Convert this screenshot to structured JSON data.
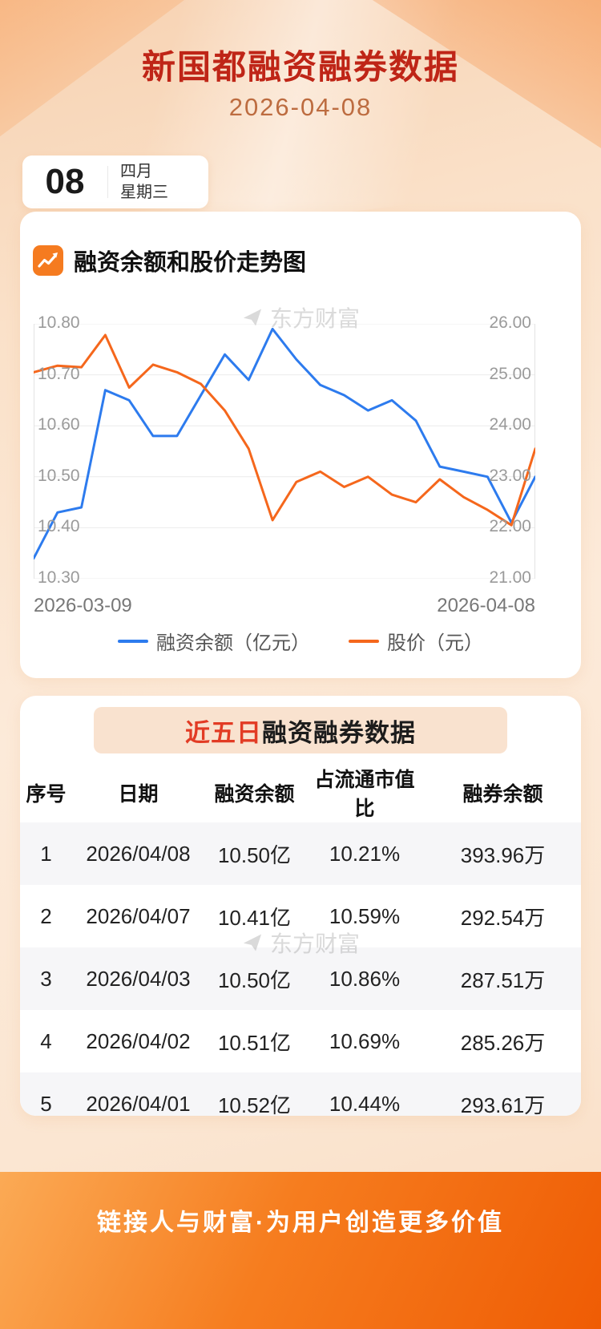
{
  "header": {
    "title": "新国都融资融券数据",
    "subtitle": "2026-04-08",
    "badge": {
      "day": "08",
      "month": "四月",
      "weekday": "星期三"
    }
  },
  "chart_section": {
    "title": "融资余额和股价走势图",
    "watermark": "东方财富"
  },
  "chart_data": {
    "type": "line",
    "x": [
      "2026-03-09",
      "2026-03-10",
      "2026-03-11",
      "2026-03-12",
      "2026-03-13",
      "2026-03-16",
      "2026-03-17",
      "2026-03-18",
      "2026-03-19",
      "2026-03-20",
      "2026-03-23",
      "2026-03-24",
      "2026-03-25",
      "2026-03-26",
      "2026-03-27",
      "2026-03-30",
      "2026-03-31",
      "2026-04-01",
      "2026-04-02",
      "2026-04-03",
      "2026-04-07",
      "2026-04-08"
    ],
    "series": [
      {
        "name": "融资余额（亿元）",
        "axis": "left",
        "color": "#2d7bee",
        "values": [
          10.34,
          10.43,
          10.44,
          10.67,
          10.65,
          10.58,
          10.58,
          10.66,
          10.74,
          10.69,
          10.79,
          10.73,
          10.68,
          10.66,
          10.63,
          10.65,
          10.61,
          10.52,
          10.51,
          10.5,
          10.41,
          10.5
        ]
      },
      {
        "name": "股价（元）",
        "axis": "right",
        "color": "#f5671c",
        "values": [
          25.05,
          25.18,
          25.15,
          25.78,
          24.75,
          25.2,
          25.05,
          24.82,
          24.3,
          23.55,
          22.15,
          22.9,
          23.1,
          22.8,
          23.0,
          22.65,
          22.5,
          22.95,
          22.6,
          22.35,
          22.05,
          23.55
        ]
      }
    ],
    "left_axis": {
      "range": [
        10.3,
        10.8
      ],
      "ticks": [
        "10.80",
        "10.70",
        "10.60",
        "10.50",
        "10.40",
        "10.30"
      ]
    },
    "right_axis": {
      "range": [
        21.0,
        26.0
      ],
      "ticks": [
        "26.00",
        "25.00",
        "24.00",
        "23.00",
        "22.00",
        "21.00"
      ]
    },
    "x_axis": {
      "start_label": "2026-03-09",
      "end_label": "2026-04-08"
    },
    "grid": true,
    "legend_position": "bottom"
  },
  "table_section": {
    "title_highlight": "近五日",
    "title_rest": "融资融券数据",
    "watermark": "东方财富",
    "columns": [
      "序号",
      "日期",
      "融资余额",
      "占流通市值比",
      "融券余额"
    ],
    "rows": [
      [
        "1",
        "2026/04/08",
        "10.50亿",
        "10.21%",
        "393.96万"
      ],
      [
        "2",
        "2026/04/07",
        "10.41亿",
        "10.59%",
        "292.54万"
      ],
      [
        "3",
        "2026/04/03",
        "10.50亿",
        "10.86%",
        "287.51万"
      ],
      [
        "4",
        "2026/04/02",
        "10.51亿",
        "10.69%",
        "285.26万"
      ],
      [
        "5",
        "2026/04/01",
        "10.52亿",
        "10.44%",
        "293.61万"
      ]
    ]
  },
  "footer": {
    "slogan": "链接人与财富·为用户创造更多价值"
  },
  "colors": {
    "title_red": "#bf2517",
    "accent_blue": "#2d7bee",
    "accent_orange": "#f5671c",
    "footer_gradient_start": "#fbaa55",
    "footer_gradient_end": "#ef5c04"
  }
}
